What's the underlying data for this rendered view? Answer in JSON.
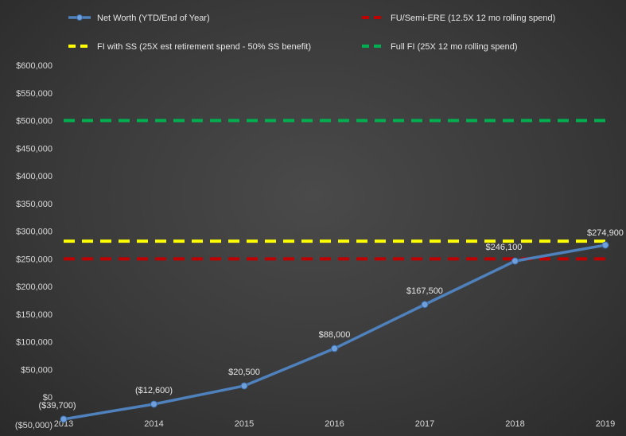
{
  "chart_data": {
    "type": "line",
    "categories": [
      "2013",
      "2014",
      "2015",
      "2016",
      "2017",
      "2018",
      "2019"
    ],
    "ylim": [
      -50000,
      600000
    ],
    "yticks": [
      -50000,
      0,
      50000,
      100000,
      150000,
      200000,
      250000,
      300000,
      350000,
      400000,
      450000,
      500000,
      550000,
      600000
    ],
    "ytick_labels": [
      "($50,000)",
      "$0",
      "$50,000",
      "$100,000",
      "$150,000",
      "$200,000",
      "$250,000",
      "$300,000",
      "$350,000",
      "$400,000",
      "$450,000",
      "$500,000",
      "$550,000",
      "$600,000"
    ],
    "series": [
      {
        "name": "Net Worth (YTD/End of Year)",
        "style": "line-markers",
        "color": "#4f81bd",
        "values": [
          -39700,
          -12600,
          20500,
          88000,
          167500,
          246100,
          274900
        ],
        "labels": [
          "($39,700)",
          "($12,600)",
          "$20,500",
          "$88,000",
          "$167,500",
          "$246,100",
          "$274,900"
        ]
      },
      {
        "name": "FU/Semi-ERE (12.5X 12 mo rolling spend)",
        "style": "dashed",
        "color": "#c00000",
        "values": [
          250000,
          250000,
          250000,
          250000,
          250000,
          250000,
          250000
        ]
      },
      {
        "name": "FI with SS  (25X est retirement spend - 50% SS benefit)",
        "style": "dashed",
        "color": "#ffff00",
        "values": [
          282000,
          282000,
          282000,
          282000,
          282000,
          282000,
          282000
        ]
      },
      {
        "name": "Full FI  (25X 12 mo rolling spend)",
        "style": "dashed",
        "color": "#00b050",
        "values": [
          500000,
          500000,
          500000,
          500000,
          500000,
          500000,
          500000
        ]
      }
    ],
    "legend": "top",
    "grid": false,
    "title": "",
    "xlabel": "",
    "ylabel": ""
  }
}
